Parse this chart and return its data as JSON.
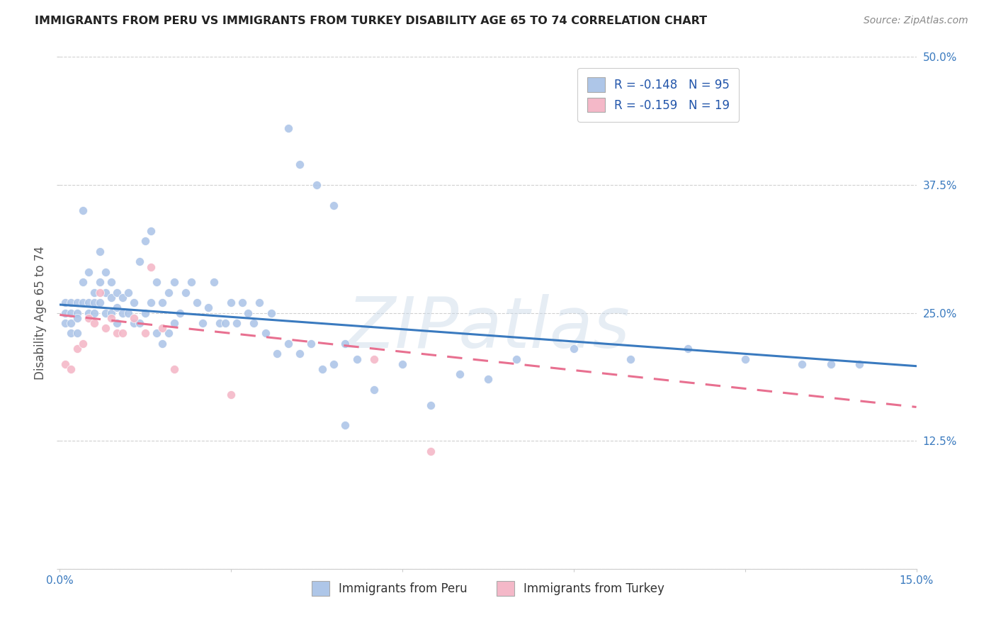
{
  "title": "IMMIGRANTS FROM PERU VS IMMIGRANTS FROM TURKEY DISABILITY AGE 65 TO 74 CORRELATION CHART",
  "source": "Source: ZipAtlas.com",
  "ylabel": "Disability Age 65 to 74",
  "xlabel": "",
  "xlim": [
    0.0,
    0.15
  ],
  "ylim": [
    0.0,
    0.5
  ],
  "xticks": [
    0.0,
    0.03,
    0.06,
    0.09,
    0.12,
    0.15
  ],
  "xticklabels": [
    "0.0%",
    "",
    "",
    "",
    "",
    "15.0%"
  ],
  "yticks": [
    0.0,
    0.125,
    0.25,
    0.375,
    0.5
  ],
  "yticklabels": [
    "",
    "12.5%",
    "25.0%",
    "37.5%",
    "50.0%"
  ],
  "peru_color": "#aec6e8",
  "turkey_color": "#f4b8c8",
  "peru_line_color": "#3a7abf",
  "turkey_line_color": "#e87090",
  "watermark": "ZIPatlas",
  "legend_peru_label": "R = -0.148   N = 95",
  "legend_turkey_label": "R = -0.159   N = 19",
  "bottom_legend_peru": "Immigrants from Peru",
  "bottom_legend_turkey": "Immigrants from Turkey",
  "peru_line_x0": 0.0,
  "peru_line_y0": 0.258,
  "peru_line_x1": 0.15,
  "peru_line_y1": 0.198,
  "turkey_line_x0": 0.0,
  "turkey_line_y0": 0.248,
  "turkey_line_x1": 0.15,
  "turkey_line_y1": 0.158,
  "peru_x": [
    0.001,
    0.001,
    0.001,
    0.002,
    0.002,
    0.002,
    0.002,
    0.003,
    0.003,
    0.003,
    0.003,
    0.004,
    0.004,
    0.004,
    0.005,
    0.005,
    0.005,
    0.006,
    0.006,
    0.006,
    0.007,
    0.007,
    0.007,
    0.008,
    0.008,
    0.008,
    0.009,
    0.009,
    0.009,
    0.01,
    0.01,
    0.01,
    0.011,
    0.011,
    0.012,
    0.012,
    0.013,
    0.013,
    0.014,
    0.014,
    0.015,
    0.015,
    0.016,
    0.016,
    0.017,
    0.017,
    0.018,
    0.018,
    0.019,
    0.019,
    0.02,
    0.02,
    0.021,
    0.022,
    0.023,
    0.024,
    0.025,
    0.026,
    0.027,
    0.028,
    0.029,
    0.03,
    0.031,
    0.032,
    0.033,
    0.034,
    0.035,
    0.036,
    0.037,
    0.038,
    0.04,
    0.042,
    0.044,
    0.046,
    0.048,
    0.05,
    0.052,
    0.055,
    0.06,
    0.065,
    0.07,
    0.075,
    0.08,
    0.09,
    0.1,
    0.11,
    0.12,
    0.13,
    0.135,
    0.14,
    0.04,
    0.042,
    0.045,
    0.048,
    0.05
  ],
  "peru_y": [
    0.26,
    0.25,
    0.24,
    0.26,
    0.25,
    0.24,
    0.23,
    0.26,
    0.25,
    0.245,
    0.23,
    0.26,
    0.35,
    0.28,
    0.26,
    0.25,
    0.29,
    0.27,
    0.26,
    0.25,
    0.31,
    0.28,
    0.26,
    0.29,
    0.27,
    0.25,
    0.28,
    0.265,
    0.25,
    0.27,
    0.255,
    0.24,
    0.265,
    0.25,
    0.27,
    0.25,
    0.26,
    0.24,
    0.3,
    0.24,
    0.32,
    0.25,
    0.33,
    0.26,
    0.28,
    0.23,
    0.26,
    0.22,
    0.27,
    0.23,
    0.28,
    0.24,
    0.25,
    0.27,
    0.28,
    0.26,
    0.24,
    0.255,
    0.28,
    0.24,
    0.24,
    0.26,
    0.24,
    0.26,
    0.25,
    0.24,
    0.26,
    0.23,
    0.25,
    0.21,
    0.22,
    0.21,
    0.22,
    0.195,
    0.2,
    0.22,
    0.205,
    0.175,
    0.2,
    0.16,
    0.19,
    0.185,
    0.205,
    0.215,
    0.205,
    0.215,
    0.205,
    0.2,
    0.2,
    0.2,
    0.43,
    0.395,
    0.375,
    0.355,
    0.14
  ],
  "turkey_x": [
    0.001,
    0.002,
    0.003,
    0.004,
    0.005,
    0.006,
    0.007,
    0.008,
    0.009,
    0.01,
    0.011,
    0.013,
    0.015,
    0.016,
    0.018,
    0.02,
    0.03,
    0.055,
    0.065
  ],
  "turkey_y": [
    0.2,
    0.195,
    0.215,
    0.22,
    0.245,
    0.24,
    0.27,
    0.235,
    0.245,
    0.23,
    0.23,
    0.245,
    0.23,
    0.295,
    0.235,
    0.195,
    0.17,
    0.205,
    0.115
  ]
}
